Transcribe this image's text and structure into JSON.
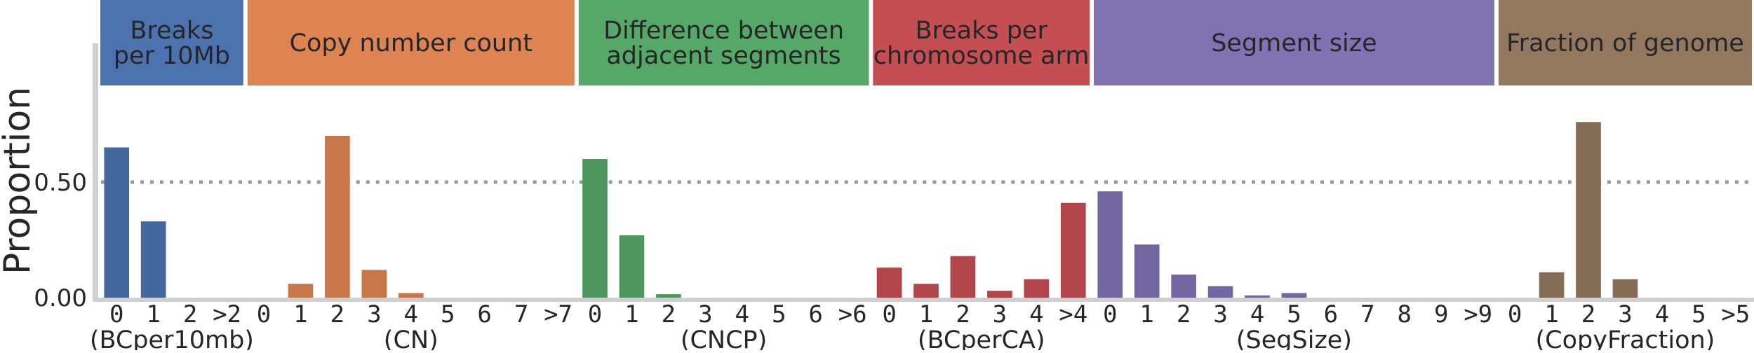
{
  "chart_data": {
    "type": "bar",
    "ylabel": "Proportion",
    "ylim": [
      0,
      1.0
    ],
    "yticks": [
      {
        "value": 0.0,
        "label": "0.00"
      },
      {
        "value": 0.5,
        "label": "0.50"
      }
    ],
    "reference_line": {
      "value": 0.5,
      "style": "dotted",
      "color": "#999999"
    },
    "grid": false,
    "panels": [
      {
        "header": [
          "Breaks",
          "per 10Mb"
        ],
        "group_label": "(BCper10mb)",
        "color": "#4c72b0",
        "categories": [
          "0",
          "1",
          "2",
          ">2"
        ],
        "values": [
          0.65,
          0.33,
          0.0,
          0.0
        ]
      },
      {
        "header": [
          "Copy number count"
        ],
        "group_label": "(CN)",
        "color": "#dd8452",
        "categories": [
          "0",
          "1",
          "2",
          "3",
          "4",
          "5",
          "6",
          "7",
          ">7"
        ],
        "values": [
          0.0,
          0.06,
          0.7,
          0.12,
          0.02,
          0.0,
          0.0,
          0.0,
          0.0
        ]
      },
      {
        "header": [
          "Difference between",
          "adjacent segments"
        ],
        "group_label": "(CNCP)",
        "color": "#55a868",
        "categories": [
          "0",
          "1",
          "2",
          "3",
          "4",
          "5",
          "6",
          ">6"
        ],
        "values": [
          0.6,
          0.27,
          0.015,
          0.0,
          0.0,
          0.0,
          0.0,
          0.0
        ]
      },
      {
        "header": [
          "Breaks per",
          "chromosome arm"
        ],
        "group_label": "(BCperCA)",
        "color": "#c44e52",
        "categories": [
          "0",
          "1",
          "2",
          "3",
          "4",
          ">4"
        ],
        "values": [
          0.13,
          0.06,
          0.18,
          0.03,
          0.08,
          0.41
        ]
      },
      {
        "header": [
          "Segment size"
        ],
        "group_label": "(SegSize)",
        "color": "#8172b3",
        "categories": [
          "0",
          "1",
          "2",
          "3",
          "4",
          "5",
          "6",
          "7",
          "8",
          "9",
          ">9"
        ],
        "values": [
          0.46,
          0.23,
          0.1,
          0.05,
          0.01,
          0.02,
          0.0,
          0.0,
          0.0,
          0.0,
          0.0
        ]
      },
      {
        "header": [
          "Fraction of genome"
        ],
        "group_label": "(CopyFraction)",
        "color": "#937860",
        "categories": [
          "0",
          "1",
          "2",
          "3",
          "4",
          "5",
          ">5"
        ],
        "values": [
          0.0,
          0.11,
          0.76,
          0.08,
          0.0,
          0.0,
          0.0
        ]
      }
    ]
  }
}
